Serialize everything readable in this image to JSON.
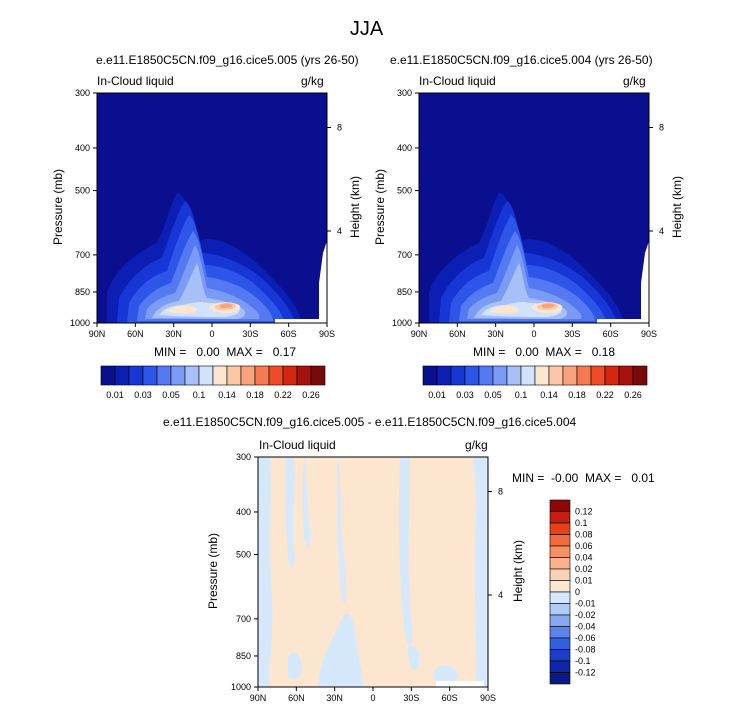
{
  "main_title": "JJA",
  "colors": {
    "background_field": "#0a0f8f",
    "frame": "#000000",
    "diff_positive": "#fde6d0",
    "diff_negative": "#d6e8fb"
  },
  "panels": [
    {
      "id": "panel-005",
      "title": "e.e11.E1850C5CN.f09_g16.cice5.005 (yrs 26-50)",
      "left_label": "In-Cloud liquid",
      "right_label": "g/kg",
      "ylabel": "Pressure (mb)",
      "y2label": "Height (km)",
      "min_text": "MIN =   0.00  MAX =   0.17"
    },
    {
      "id": "panel-004",
      "title": "e.e11.E1850C5CN.f09_g16.cice5.004 (yrs 26-50)",
      "left_label": "In-Cloud liquid",
      "right_label": "g/kg",
      "ylabel": "Pressure (mb)",
      "y2label": "Height (km)",
      "min_text": "MIN =   0.00  MAX =   0.18"
    },
    {
      "id": "panel-diff",
      "title": "e.e11.E1850C5CN.f09_g16.cice5.005 - e.e11.E1850C5CN.f09_g16.cice5.004",
      "left_label": "In-Cloud liquid",
      "right_label": "g/kg",
      "ylabel": "Pressure (mb)",
      "y2label": "Height (km)",
      "min_text": "MIN =  -0.00  MAX =   0.01"
    }
  ],
  "axes": {
    "x_ticks": [
      "90N",
      "60N",
      "30N",
      "0",
      "30S",
      "60S",
      "90S"
    ],
    "y_ticks": [
      "300",
      "400",
      "500",
      "700",
      "850",
      "1000"
    ],
    "y2_ticks": [
      "8",
      "4"
    ]
  },
  "colorbar_top": {
    "labels": [
      "0.01",
      "0.03",
      "0.05",
      "0.1",
      "0.14",
      "0.18",
      "0.22",
      "0.26"
    ],
    "colors": [
      "#0a0f8f",
      "#0c1fb4",
      "#1637d6",
      "#2e55ea",
      "#5479f2",
      "#7b9cf6",
      "#a7c0f8",
      "#d3e2fb",
      "#fde6d0",
      "#fbc7a6",
      "#f9a37d",
      "#f6794f",
      "#ef4b26",
      "#d52612",
      "#a8120c",
      "#7a0a0a"
    ]
  },
  "colorbar_diff": {
    "labels": [
      "0.12",
      "0.1",
      "0.08",
      "0.06",
      "0.04",
      "0.02",
      "0.01",
      "0",
      "-0.01",
      "-0.02",
      "-0.04",
      "-0.06",
      "-0.08",
      "-0.1",
      "-0.12"
    ],
    "colors": [
      "#8a0a0a",
      "#c51f12",
      "#e8401d",
      "#f36a3d",
      "#f68f63",
      "#f9b28d",
      "#fbcfb3",
      "#fde6d0",
      "#d6e8fb",
      "#aecaf7",
      "#86a8f2",
      "#5d84ec",
      "#3460e0",
      "#1a3fc6",
      "#0d25a6",
      "#081a86"
    ]
  },
  "chart_data": [
    {
      "type": "heatmap",
      "title": "e.e11.E1850C5CN.f09_g16.cice5.005 (yrs 26-50)",
      "variable": "In-Cloud liquid",
      "units": "g/kg",
      "xlabel": "",
      "ylabel": "Pressure (mb)",
      "y2label": "Height (km)",
      "x_ticks": [
        "90N",
        "60N",
        "30N",
        "0",
        "30S",
        "60S",
        "90S"
      ],
      "y_ticks": [
        300,
        400,
        500,
        700,
        850,
        1000
      ],
      "y_scale": "log",
      "ylim": [
        1000,
        300
      ],
      "min": 0.0,
      "max": 0.17
    },
    {
      "type": "heatmap",
      "title": "e.e11.E1850C5CN.f09_g16.cice5.004 (yrs 26-50)",
      "variable": "In-Cloud liquid",
      "units": "g/kg",
      "xlabel": "",
      "ylabel": "Pressure (mb)",
      "y2label": "Height (km)",
      "x_ticks": [
        "90N",
        "60N",
        "30N",
        "0",
        "30S",
        "60S",
        "90S"
      ],
      "y_ticks": [
        300,
        400,
        500,
        700,
        850,
        1000
      ],
      "y_scale": "log",
      "ylim": [
        1000,
        300
      ],
      "min": 0.0,
      "max": 0.18
    },
    {
      "type": "heatmap",
      "title": "e.e11.E1850C5CN.f09_g16.cice5.005 - e.e11.E1850C5CN.f09_g16.cice5.004",
      "variable": "In-Cloud liquid",
      "units": "g/kg",
      "xlabel": "",
      "ylabel": "Pressure (mb)",
      "y2label": "Height (km)",
      "x_ticks": [
        "90N",
        "60N",
        "30N",
        "0",
        "30S",
        "60S",
        "90S"
      ],
      "y_ticks": [
        300,
        400,
        500,
        700,
        850,
        1000
      ],
      "y_scale": "log",
      "ylim": [
        1000,
        300
      ],
      "min": -0.0,
      "max": 0.01
    }
  ]
}
